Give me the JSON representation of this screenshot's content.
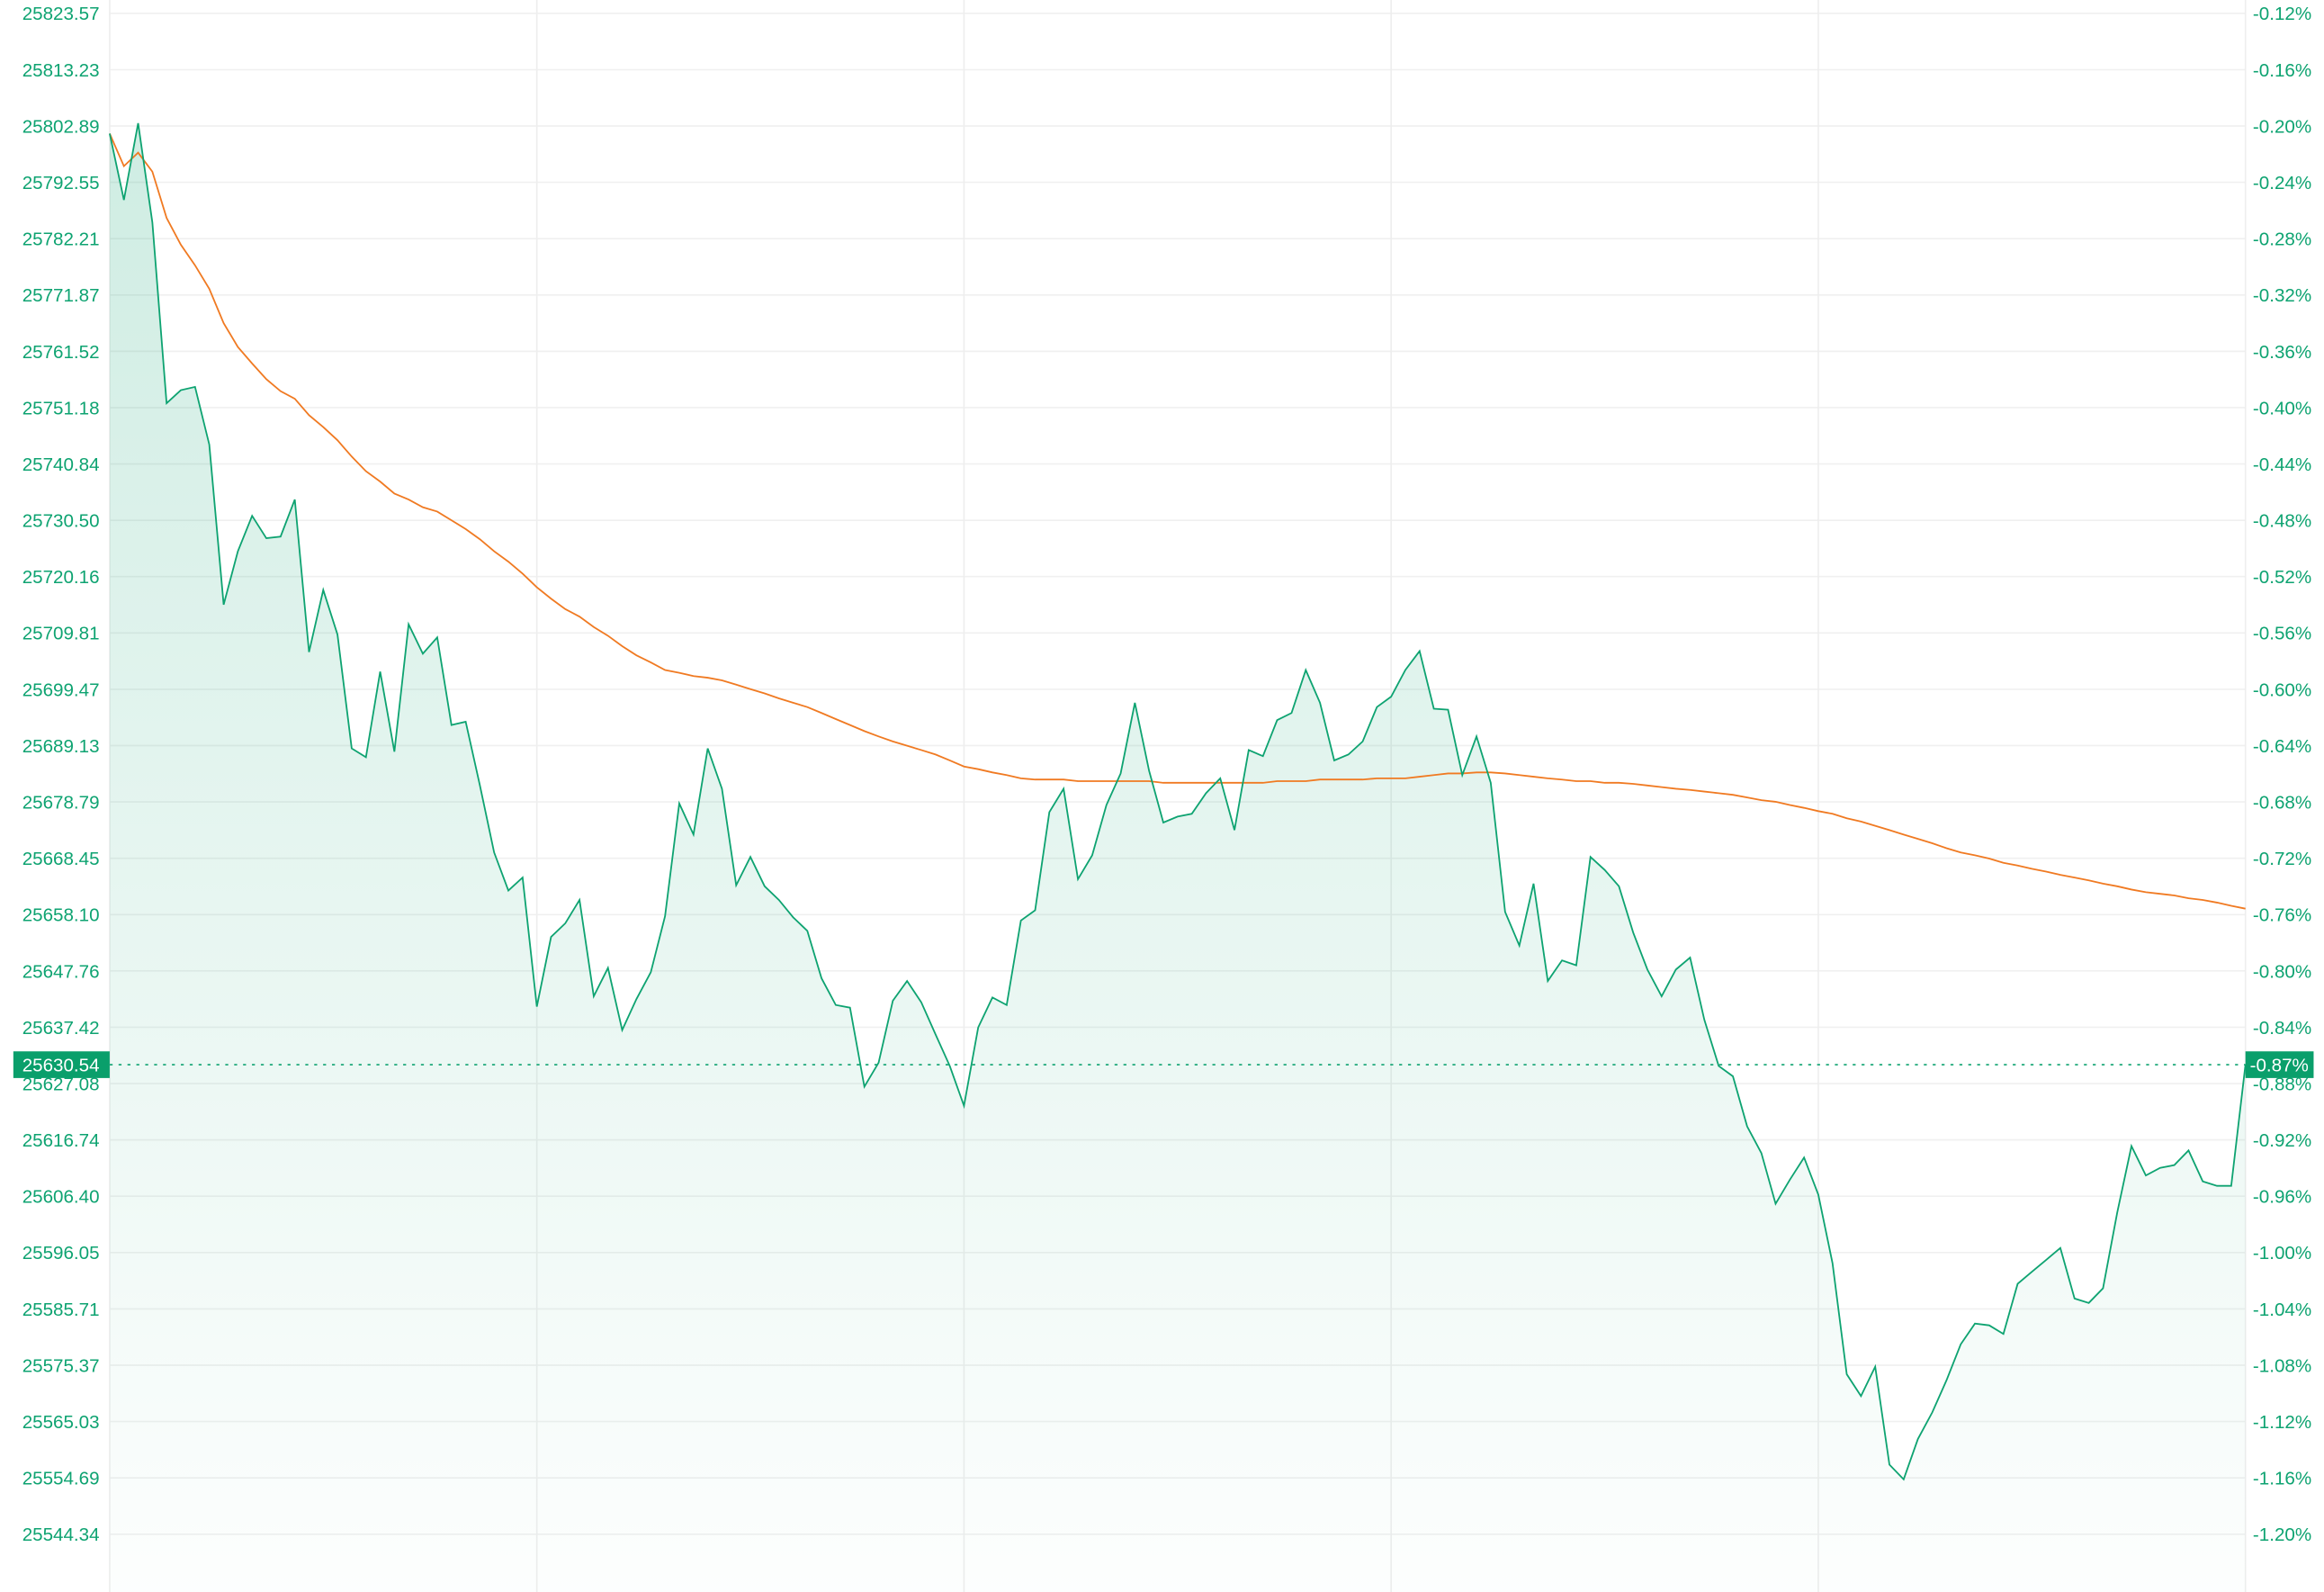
{
  "chart_data": {
    "type": "area",
    "title": "",
    "xlabel": "",
    "ylabel": "",
    "ylim": [
      25544.34,
      25823.57
    ],
    "grid": true,
    "colors": {
      "price": "#0ea371",
      "average": "#f07a22",
      "label_bg": "#0a9f6b",
      "fill": "#0ea371"
    },
    "left_ticks": [
      "25823.57",
      "25813.23",
      "25802.89",
      "25792.55",
      "25782.21",
      "25771.87",
      "25761.52",
      "25751.18",
      "25740.84",
      "25730.50",
      "25720.16",
      "25709.81",
      "25699.47",
      "25689.13",
      "25678.79",
      "25668.45",
      "25658.10",
      "25647.76",
      "25637.42",
      "25627.08",
      "25616.74",
      "25606.40",
      "25596.05",
      "25585.71",
      "25575.37",
      "25565.03",
      "25554.69",
      "25544.34"
    ],
    "right_ticks": [
      "-0.12%",
      "-0.16%",
      "-0.20%",
      "-0.24%",
      "-0.28%",
      "-0.32%",
      "-0.36%",
      "-0.40%",
      "-0.44%",
      "-0.48%",
      "-0.52%",
      "-0.56%",
      "-0.60%",
      "-0.64%",
      "-0.68%",
      "-0.72%",
      "-0.76%",
      "-0.80%",
      "-0.84%",
      "-0.88%",
      "-0.92%",
      "-0.96%",
      "-1.00%",
      "-1.04%",
      "-1.08%",
      "-1.12%",
      "-1.16%",
      "-1.20%"
    ],
    "current": {
      "price": 25630.54,
      "price_label": "25630.54",
      "change_label": "-0.87%"
    },
    "series": [
      {
        "values": [
          25801.5,
          25789.3,
          25803.4,
          25785.2,
          25752.0,
          25754.4,
          25755.0,
          25744.4,
          25715.0,
          25724.8,
          25731.3,
          25727.2,
          25727.5,
          25734.3,
          25706.3,
          25717.7,
          25709.5,
          25688.6,
          25687.0,
          25702.7,
          25688.0,
          25711.4,
          25706.0,
          25709.0,
          25692.9,
          25693.5,
          25681.8,
          25669.5,
          25662.5,
          25664.9,
          25641.2,
          25654.0,
          25656.5,
          25660.8,
          25643.1,
          25648.3,
          25636.9,
          25642.6,
          25647.5,
          25657.8,
          25678.5,
          25672.8,
          25688.6,
          25681.2,
          25663.5,
          25668.7,
          25663.3,
          25660.8,
          25657.6,
          25655.1,
          25646.4,
          25641.5,
          25641.0,
          25626.5,
          25630.9,
          25642.3,
          25645.9,
          25642.0,
          25636.1,
          25630.3,
          25623.0,
          25637.4,
          25642.9,
          25641.5,
          25657.0,
          25658.9,
          25676.9,
          25681.2,
          25664.6,
          25669.0,
          25678.2,
          25684.0,
          25697.0,
          25684.5,
          25675.0,
          25676.1,
          25676.6,
          25680.4,
          25683.1,
          25673.6,
          25688.3,
          25687.2,
          25693.8,
          25695.1,
          25703.0,
          25697.0,
          25686.4,
          25687.5,
          25689.9,
          25696.2,
          25698.1,
          25703.0,
          25706.5,
          25695.9,
          25695.7,
          25683.7,
          25690.8,
          25682.3,
          25658.6,
          25652.4,
          25663.8,
          25645.9,
          25649.7,
          25648.8,
          25668.7,
          25666.3,
          25663.3,
          25654.8,
          25648.0,
          25643.1,
          25648.0,
          25650.2,
          25638.8,
          25630.3,
          25628.4,
          25619.2,
          25614.3,
          25605.0,
          25609.4,
          25613.5,
          25606.7,
          25594.1,
          25573.7,
          25569.7,
          25575.1,
          25557.1,
          25554.4,
          25561.8,
          25566.7,
          25572.6,
          25579.2,
          25583.0,
          25582.7,
          25581.1,
          25590.3,
          25592.5,
          25594.7,
          25596.9,
          25587.6,
          25586.8,
          25589.5,
          25603.4,
          25615.6,
          25610.2,
          25611.6,
          25612.1,
          25614.8,
          25609.1,
          25608.3,
          25608.3,
          25630.54
        ]
      },
      {
        "values": [
          25801.5,
          25795.5,
          25798.0,
          25794.5,
          25786.0,
          25781.1,
          25777.3,
          25773.0,
          25766.7,
          25762.3,
          25759.3,
          25756.4,
          25754.2,
          25752.8,
          25749.8,
          25747.6,
          25745.2,
          25742.2,
          25739.5,
          25737.6,
          25735.4,
          25734.3,
          25732.9,
          25732.1,
          25730.5,
          25728.9,
          25727.0,
          25724.8,
          25722.9,
          25720.7,
          25718.2,
          25716.1,
          25714.2,
          25712.8,
          25710.9,
          25709.3,
          25707.4,
          25705.7,
          25704.4,
          25703.0,
          25702.5,
          25701.9,
          25701.6,
          25701.1,
          25700.3,
          25699.5,
          25698.7,
          25697.8,
          25697.0,
          25696.2,
          25695.1,
          25694.0,
          25692.9,
          25691.8,
          25690.8,
          25689.9,
          25689.1,
          25688.3,
          25687.5,
          25686.4,
          25685.3,
          25684.8,
          25684.2,
          25683.7,
          25683.1,
          25682.9,
          25682.9,
          25682.9,
          25682.6,
          25682.6,
          25682.6,
          25682.6,
          25682.6,
          25682.6,
          25682.3,
          25682.3,
          25682.3,
          25682.3,
          25682.3,
          25682.3,
          25682.3,
          25682.3,
          25682.6,
          25682.6,
          25682.6,
          25682.9,
          25682.9,
          25682.9,
          25682.9,
          25683.1,
          25683.1,
          25683.1,
          25683.4,
          25683.7,
          25684.0,
          25684.0,
          25684.2,
          25684.2,
          25684.0,
          25683.7,
          25683.4,
          25683.1,
          25682.9,
          25682.6,
          25682.6,
          25682.3,
          25682.3,
          25682.1,
          25681.8,
          25681.5,
          25681.2,
          25681.0,
          25680.7,
          25680.4,
          25680.1,
          25679.6,
          25679.1,
          25678.8,
          25678.2,
          25677.7,
          25677.1,
          25676.6,
          25675.8,
          25675.2,
          25674.4,
          25673.6,
          25672.8,
          25672.0,
          25671.2,
          25670.3,
          25669.5,
          25669.0,
          25668.4,
          25667.6,
          25667.1,
          25666.5,
          25666.0,
          25665.4,
          25664.9,
          25664.4,
          25663.8,
          25663.3,
          25662.7,
          25662.2,
          25661.9,
          25661.6,
          25661.1,
          25660.8,
          25660.3,
          25659.7,
          25659.2
        ]
      }
    ]
  }
}
